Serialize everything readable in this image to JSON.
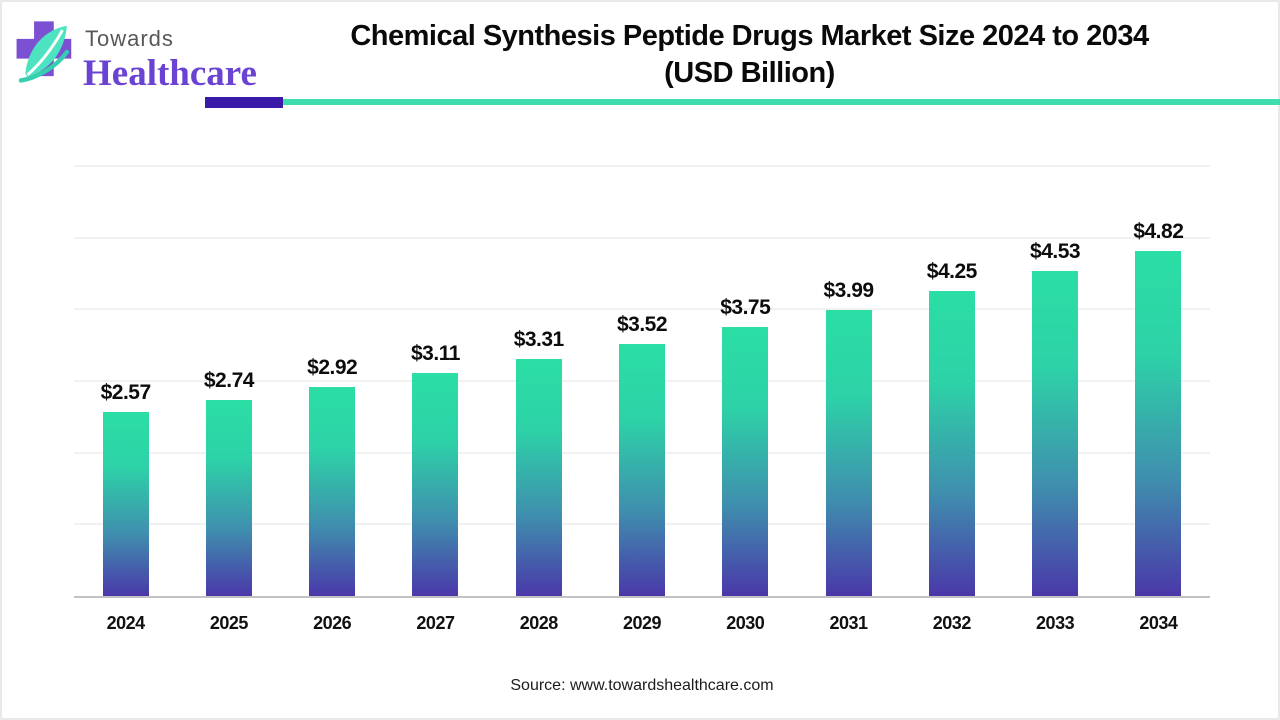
{
  "brand": {
    "name_top": "Towards",
    "name_bottom": "Healthcare",
    "logo_icon": "cross-and-leaf-icon",
    "colors": {
      "cross_purple": "#7b50d2",
      "leaf_mint": "#4de2c0",
      "accent_purple": "#3a1aa8",
      "accent_teal": "#3fdcae",
      "brand_text_purple": "#6a43d2"
    }
  },
  "header": {
    "title_line1": "Chemical Synthesis Peptide Drugs Market Size 2024 to 2034",
    "title_line2": "(USD Billion)"
  },
  "chart_data": {
    "type": "bar",
    "title": "Chemical Synthesis Peptide Drugs Market Size 2024 to 2034 (USD Billion)",
    "categories": [
      "2024",
      "2025",
      "2026",
      "2027",
      "2028",
      "2029",
      "2030",
      "2031",
      "2032",
      "2033",
      "2034"
    ],
    "values": [
      2.57,
      2.74,
      2.92,
      3.11,
      3.31,
      3.52,
      3.75,
      3.99,
      4.25,
      4.53,
      4.82
    ],
    "value_labels": [
      "$2.57",
      "$2.74",
      "$2.92",
      "$3.11",
      "$3.31",
      "$3.52",
      "$3.75",
      "$3.99",
      "$4.25",
      "$4.53",
      "$4.82"
    ],
    "label_prefix": "$",
    "unit": "USD Billion",
    "xlabel": "",
    "ylabel": "",
    "ylim": [
      0,
      6
    ],
    "grid": "horizontal gridlines every 1.0, no y-axis tick labels",
    "legend": "none",
    "bar_gradient": {
      "top": "#2bdea5",
      "bottom": "#4a38a9"
    }
  },
  "footer": {
    "source": "Source: www.towardshealthcare.com"
  }
}
